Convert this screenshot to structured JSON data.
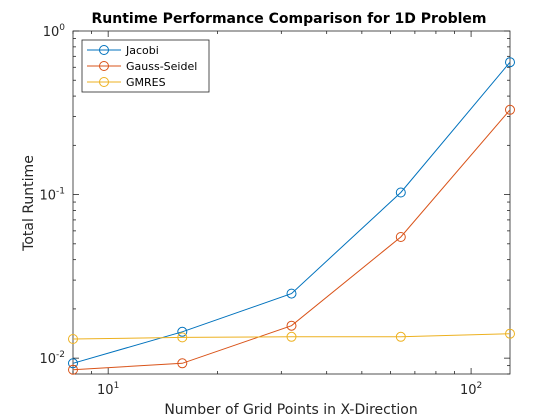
{
  "chart_data": {
    "type": "line",
    "title": "Runtime Performance Comparison for 1D Problem",
    "xlabel": "Number of Grid Points in X-Direction",
    "ylabel": "Total Runtime",
    "x_scale": "log",
    "y_scale": "log",
    "xlim": [
      8,
      128
    ],
    "ylim": [
      0.008,
      1
    ],
    "x_ticks": [
      {
        "value": 10,
        "base": "10",
        "exp": "1"
      },
      {
        "value": 100,
        "base": "10",
        "exp": "2"
      }
    ],
    "y_ticks": [
      {
        "value": 0.01,
        "base": "10",
        "exp": "-2"
      },
      {
        "value": 0.1,
        "base": "10",
        "exp": "-1"
      },
      {
        "value": 1,
        "base": "10",
        "exp": "0"
      }
    ],
    "grid": false,
    "legend_position": "top-left",
    "x": [
      8,
      16,
      32,
      64,
      128
    ],
    "series": [
      {
        "name": "Jacobi",
        "color": "#0072BD",
        "marker": "circle",
        "values": [
          0.0093,
          0.0145,
          0.0248,
          0.103,
          0.645
        ]
      },
      {
        "name": "Gauss-Seidel",
        "color": "#D95319",
        "marker": "circle",
        "values": [
          0.0085,
          0.0093,
          0.0158,
          0.055,
          0.33
        ]
      },
      {
        "name": "GMRES",
        "color": "#EDB120",
        "marker": "circle",
        "values": [
          0.0131,
          0.0134,
          0.0135,
          0.0135,
          0.0141
        ]
      }
    ]
  }
}
